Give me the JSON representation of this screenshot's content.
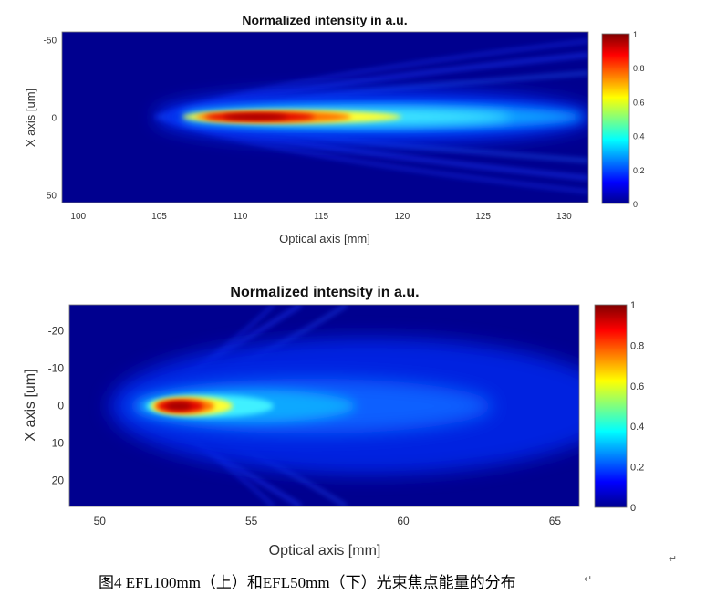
{
  "chart_data": [
    {
      "type": "heatmap",
      "title": "Normalized intensity in a.u.",
      "xlabel": "Optical axis [mm]",
      "ylabel": "X axis [um]",
      "xlim": [
        99,
        131.5
      ],
      "ylim": [
        -55,
        55
      ],
      "xticks": [
        "100",
        "105",
        "110",
        "115",
        "120",
        "125",
        "130"
      ],
      "yticks": [
        "-50",
        "0",
        "50"
      ],
      "colorbar": {
        "range": [
          0,
          1
        ],
        "ticks": [
          "0",
          "0.2",
          "0.4",
          "0.6",
          "0.8",
          "1"
        ]
      },
      "focus": {
        "peak_x": 111.5,
        "start_x": 105.3
      }
    },
    {
      "type": "heatmap",
      "title": "Normalized intensity in a.u.",
      "xlabel": "Optical axis [mm]",
      "ylabel": "X axis [um]",
      "xlim": [
        49,
        65.8
      ],
      "ylim": [
        -27,
        27
      ],
      "xticks": [
        "50",
        "55",
        "60",
        "65"
      ],
      "yticks": [
        "-20",
        "-10",
        "0",
        "10",
        "20"
      ],
      "colorbar": {
        "range": [
          0,
          1
        ],
        "ticks": [
          "0",
          "0.2",
          "0.4",
          "0.6",
          "0.8",
          "1"
        ]
      },
      "focus": {
        "peak_x": 52.8,
        "start_x": 51.3
      }
    }
  ],
  "caption": "图4 EFL100mm（上）和EFL50mm（下）光束焦点能量的分布",
  "colors": {
    "colormap": "jet",
    "background": "#00008f"
  }
}
